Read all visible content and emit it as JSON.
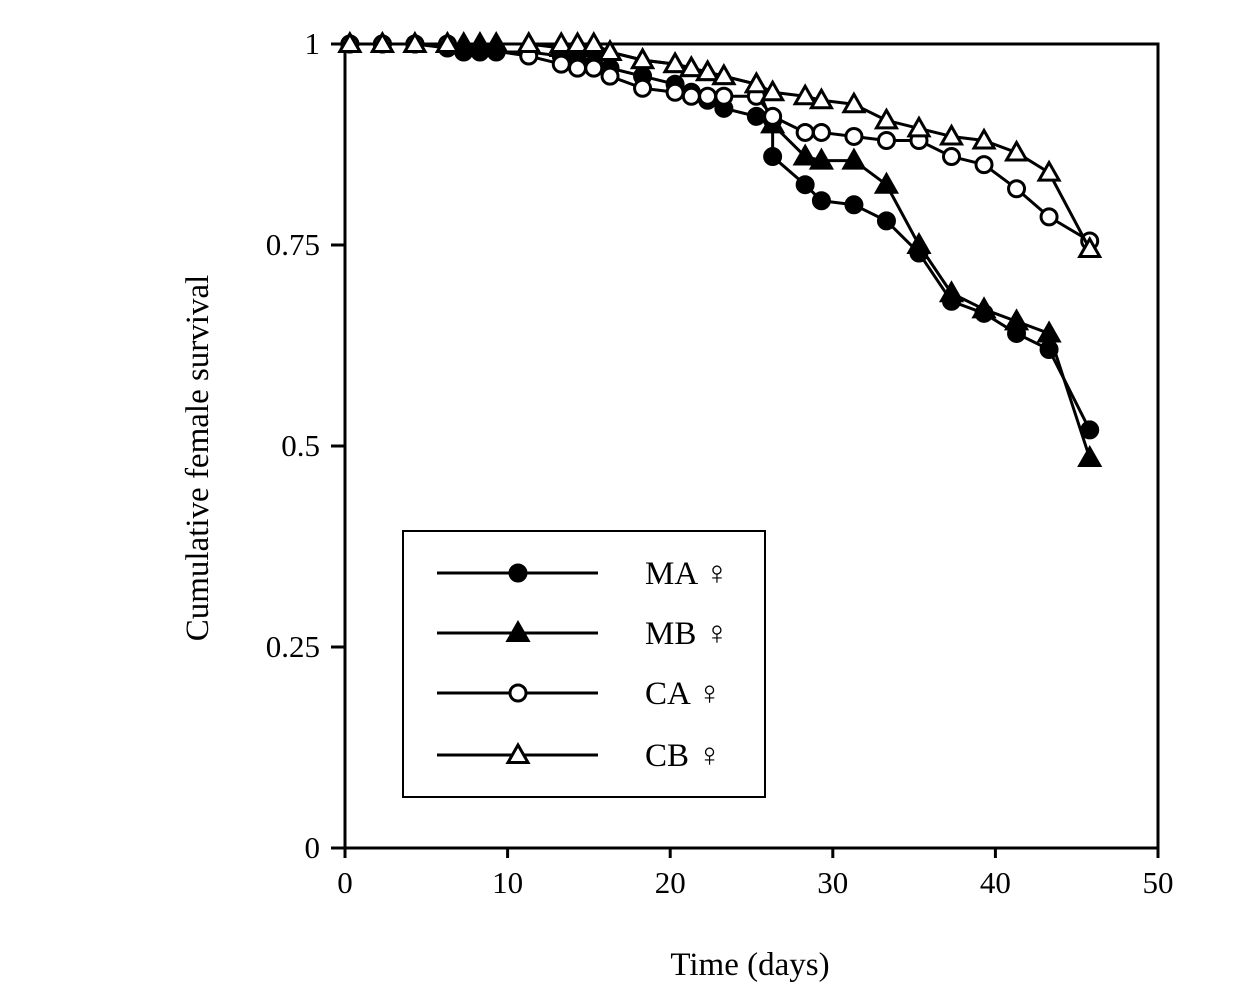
{
  "chart_data": {
    "type": "line",
    "title": "",
    "xlabel": "Time (days)",
    "ylabel": "Cumulative female survival",
    "xlim": [
      0,
      50
    ],
    "ylim": [
      0,
      1
    ],
    "xticks": [
      0,
      10,
      20,
      30,
      40,
      50
    ],
    "yticks": [
      0,
      0.25,
      0.5,
      0.75,
      1
    ],
    "xtick_labels": [
      "0",
      "10",
      "20",
      "30",
      "40",
      "50"
    ],
    "ytick_labels": [
      "0",
      "0.25",
      "0.5",
      "0.75",
      "1"
    ],
    "grid": false,
    "legend_position": "lower-left",
    "series": [
      {
        "name": "MA ♀",
        "marker": "filled-circle",
        "x": [
          0.3,
          2.3,
          4.3,
          6.3,
          7.3,
          8.3,
          9.3,
          11.3,
          13.3,
          14.3,
          15.3,
          16.3,
          18.3,
          20.3,
          21.3,
          22.3,
          23.3,
          25.3,
          26.3,
          26.3,
          28.3,
          29.3,
          31.3,
          33.3,
          35.3,
          37.3,
          39.3,
          41.3,
          43.3,
          45.8
        ],
        "y": [
          1.0,
          1.0,
          1.0,
          0.995,
          0.99,
          0.99,
          0.99,
          0.99,
          0.985,
          0.98,
          0.975,
          0.97,
          0.96,
          0.95,
          0.94,
          0.93,
          0.92,
          0.91,
          0.905,
          0.86,
          0.825,
          0.805,
          0.8,
          0.78,
          0.74,
          0.68,
          0.665,
          0.64,
          0.62,
          0.52
        ]
      },
      {
        "name": "MB ♀",
        "marker": "filled-triangle",
        "x": [
          0.3,
          2.3,
          4.3,
          6.3,
          7.3,
          8.3,
          9.3,
          11.3,
          13.3,
          14.3,
          15.3,
          16.3,
          18.3,
          20.3,
          21.3,
          22.3,
          23.3,
          25.3,
          26.3,
          28.3,
          29.3,
          31.3,
          33.3,
          35.3,
          37.3,
          39.3,
          41.3,
          43.3,
          45.8
        ],
        "y": [
          1.0,
          1.0,
          1.0,
          1.0,
          1.0,
          1.0,
          1.0,
          1.0,
          0.995,
          0.995,
          0.995,
          0.99,
          0.98,
          0.975,
          0.97,
          0.965,
          0.96,
          0.95,
          0.9,
          0.86,
          0.855,
          0.855,
          0.825,
          0.75,
          0.69,
          0.67,
          0.655,
          0.64,
          0.485
        ]
      },
      {
        "name": "CA ♀",
        "marker": "open-circle",
        "x": [
          0.3,
          2.3,
          4.3,
          6.3,
          11.3,
          13.3,
          14.3,
          15.3,
          16.3,
          18.3,
          20.3,
          21.3,
          22.3,
          23.3,
          25.3,
          26.3,
          28.3,
          29.3,
          31.3,
          33.3,
          35.3,
          37.3,
          39.3,
          41.3,
          43.3,
          45.8
        ],
        "y": [
          1.0,
          1.0,
          1.0,
          1.0,
          0.985,
          0.975,
          0.97,
          0.97,
          0.96,
          0.945,
          0.94,
          0.935,
          0.935,
          0.935,
          0.935,
          0.91,
          0.89,
          0.89,
          0.885,
          0.88,
          0.88,
          0.86,
          0.85,
          0.82,
          0.785,
          0.755
        ]
      },
      {
        "name": "CB ♀",
        "marker": "open-triangle",
        "x": [
          0.3,
          2.3,
          4.3,
          6.3,
          11.3,
          13.3,
          14.3,
          15.3,
          16.3,
          18.3,
          20.3,
          21.3,
          22.3,
          23.3,
          25.3,
          26.3,
          28.3,
          29.3,
          31.3,
          33.3,
          35.3,
          37.3,
          39.3,
          41.3,
          43.3,
          45.8
        ],
        "y": [
          1.0,
          1.0,
          1.0,
          1.0,
          1.0,
          1.0,
          1.0,
          1.0,
          0.99,
          0.98,
          0.975,
          0.97,
          0.965,
          0.96,
          0.95,
          0.94,
          0.935,
          0.93,
          0.925,
          0.905,
          0.895,
          0.885,
          0.88,
          0.865,
          0.84,
          0.745
        ]
      }
    ]
  }
}
